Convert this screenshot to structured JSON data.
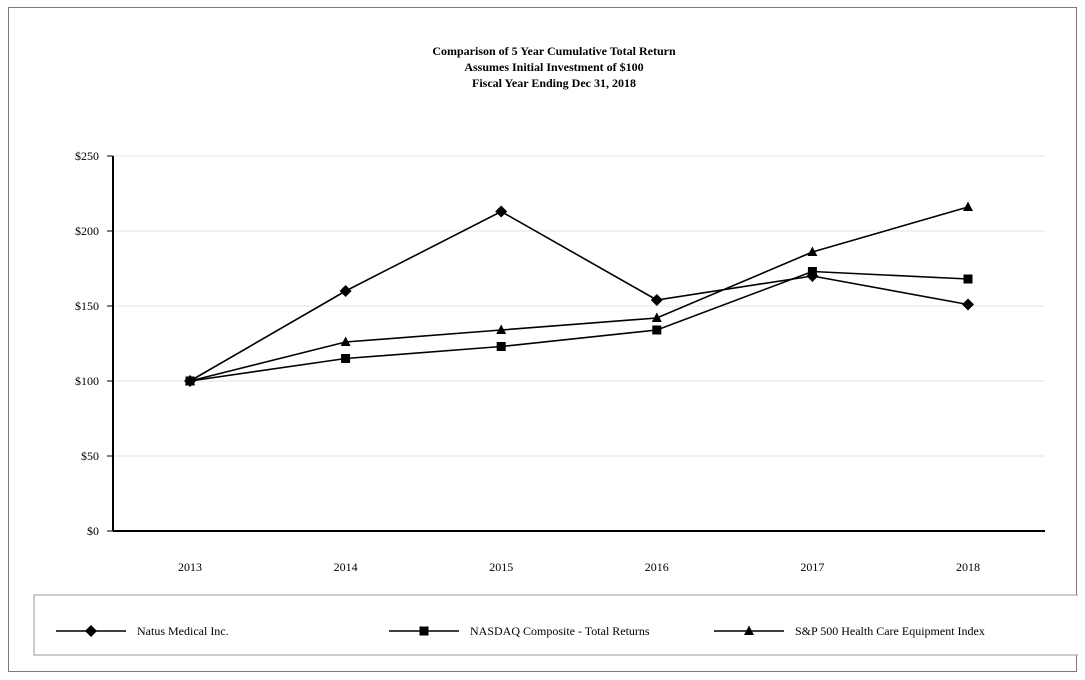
{
  "chart_data": {
    "type": "line",
    "title": [
      "Comparison of 5 Year Cumulative Total Return",
      "Assumes Initial Investment of $100",
      "Fiscal Year Ending Dec 31, 2018"
    ],
    "categories": [
      "2013",
      "2014",
      "2015",
      "2016",
      "2017",
      "2018"
    ],
    "ylim": [
      0,
      250
    ],
    "yticks": [
      0,
      50,
      100,
      150,
      200,
      250
    ],
    "ytick_labels": [
      "$0",
      "$50",
      "$100",
      "$150",
      "$200",
      "$250"
    ],
    "grid": "horizontal",
    "legend_position": "bottom",
    "series": [
      {
        "name": "Natus Medical Inc.",
        "marker": "diamond",
        "values": [
          100,
          160,
          213,
          154,
          170,
          151
        ]
      },
      {
        "name": "NASDAQ Composite - Total Returns",
        "marker": "square",
        "values": [
          100,
          115,
          123,
          134,
          173,
          168
        ]
      },
      {
        "name": "S&P 500 Health Care Equipment Index",
        "marker": "triangle",
        "values": [
          100,
          126,
          134,
          142,
          186,
          216
        ]
      }
    ],
    "colors": {
      "line": "#000000",
      "grid": "#e3e3e3",
      "axis": "#000000"
    }
  }
}
